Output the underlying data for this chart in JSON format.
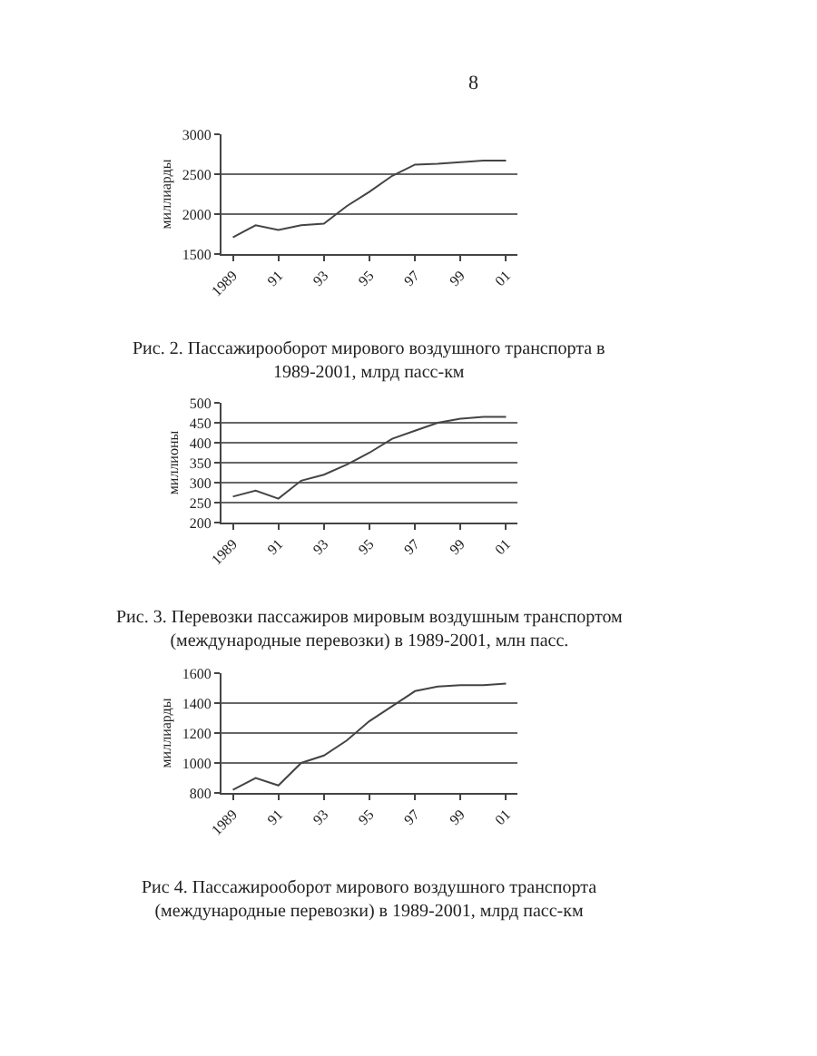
{
  "chart_data": [
    {
      "type": "line",
      "title": "Рис. 2.  Пассажирооборот мирового воздушного транспорта в 1989-2001, млрд пасс-км",
      "ylabel": "миллиарды",
      "annotations": [
        "8"
      ],
      "categories": [
        "1989",
        null,
        "91",
        null,
        "93",
        null,
        "95",
        null,
        "97",
        null,
        "99",
        null,
        "01"
      ],
      "series": [
        {
          "color": "#444444",
          "values": [
            1710,
            1860,
            1800,
            1860,
            1880,
            2100,
            2280,
            2480,
            2620,
            2630,
            2650,
            2670,
            2670
          ]
        }
      ],
      "ylim": [
        1500,
        3000
      ],
      "yticks": [
        1500,
        2000,
        2500,
        3000
      ],
      "grid": "y"
    },
    {
      "type": "line",
      "title": "Рис. 3. Перевозки пассажиров мировым воздушным транспортом (международные перевозки) в 1989-2001, млн пасс.",
      "ylabel": "миллионы",
      "categories": [
        "1989",
        null,
        "91",
        null,
        "93",
        null,
        "95",
        null,
        "97",
        null,
        "99",
        null,
        "01"
      ],
      "series": [
        {
          "color": "#444444",
          "values": [
            265,
            280,
            260,
            305,
            320,
            345,
            375,
            410,
            430,
            450,
            460,
            465,
            465
          ]
        }
      ],
      "ylim": [
        200,
        500
      ],
      "yticks": [
        200,
        250,
        300,
        350,
        400,
        450,
        500
      ],
      "grid": "y"
    },
    {
      "type": "line",
      "title": "Рис 4. Пассажирооборот мирового воздушного транспорта (международные перевозки) в 1989-2001, млрд пасс-км",
      "ylabel": "миллиарды",
      "categories": [
        "1989",
        null,
        "91",
        null,
        "93",
        null,
        "95",
        null,
        "97",
        null,
        "99",
        null,
        "01"
      ],
      "series": [
        {
          "color": "#444444",
          "values": [
            820,
            900,
            850,
            1000,
            1050,
            1150,
            1280,
            1380,
            1480,
            1510,
            1520,
            1520,
            1530
          ]
        }
      ],
      "ylim": [
        800,
        1600
      ],
      "yticks": [
        800,
        1000,
        1200,
        1400,
        1600
      ],
      "grid": "y"
    }
  ]
}
